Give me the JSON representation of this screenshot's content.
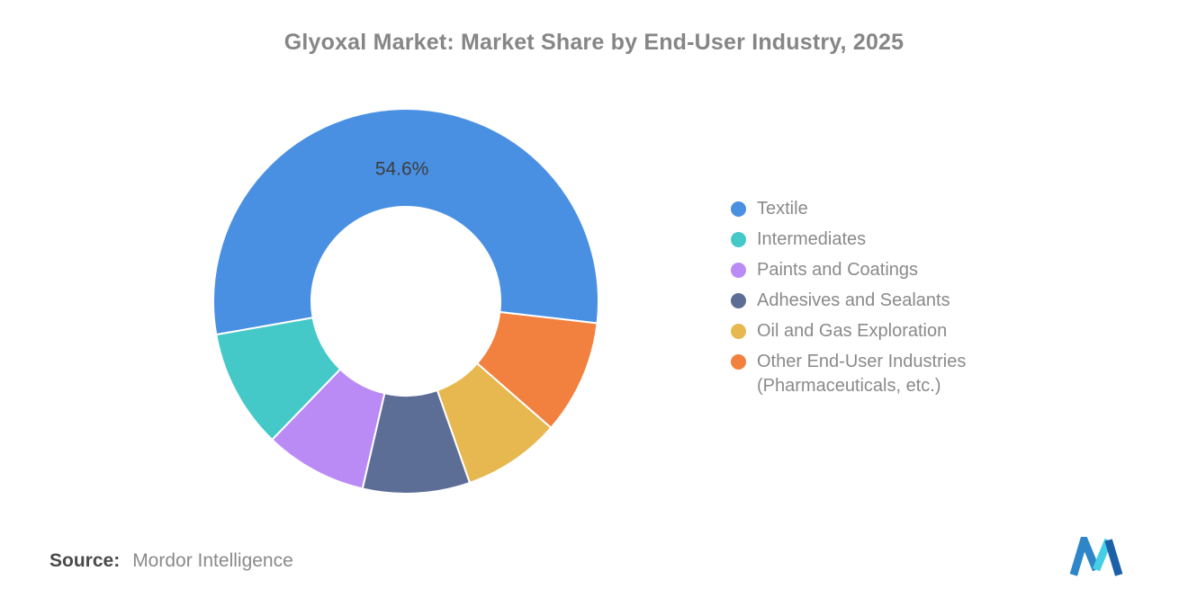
{
  "source": {
    "label": "Source:",
    "value": "Mordor Intelligence"
  },
  "logo": {
    "name": "mordor-intelligence-logo",
    "colors": {
      "blue": "#2E86C8",
      "dark_blue": "#1D5FA8",
      "cyan": "#45CFE6"
    }
  },
  "chart_data": {
    "type": "pie",
    "subtype": "donut",
    "title": "Glyoxal Market: Market Share by End-User Industry, 2025",
    "legend_position": "right",
    "start_angle_deg": 260,
    "direction": "clockwise",
    "inner_radius_ratio": 0.49,
    "segments": [
      {
        "label": "Textile",
        "value": 54.6,
        "color": "#4A90E2",
        "data_label": "54.6%"
      },
      {
        "label": "Intermediates",
        "value": 10.0,
        "color": "#45C8C8"
      },
      {
        "label": "Paints and Coatings",
        "value": 8.6,
        "color": "#BB8BF5"
      },
      {
        "label": "Adhesives and Sealants",
        "value": 9.0,
        "color": "#5D6E96"
      },
      {
        "label": "Oil and Gas Exploration",
        "value": 8.2,
        "color": "#E7B84F"
      },
      {
        "label": "Other End-User Industries (Pharmaceuticals, etc.)",
        "value": 9.6,
        "color": "#F28140"
      }
    ],
    "draw_order_clockwise": [
      0,
      5,
      4,
      3,
      2,
      1
    ],
    "shown_data_labels": [
      "54.6%"
    ]
  }
}
